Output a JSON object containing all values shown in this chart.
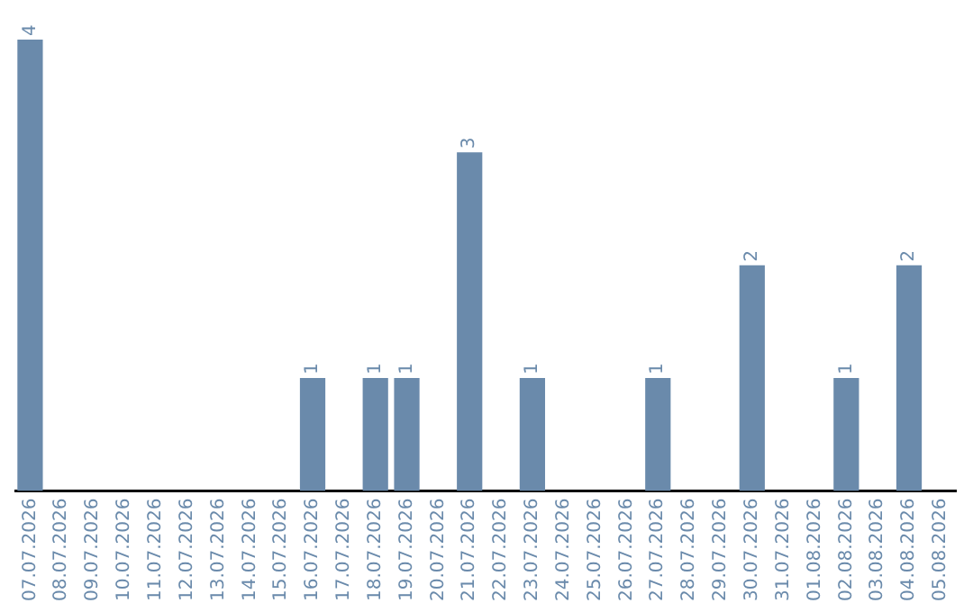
{
  "chart_data": {
    "type": "bar",
    "categories": [
      "07.07.2026",
      "08.07.2026",
      "09.07.2026",
      "10.07.2026",
      "11.07.2026",
      "12.07.2026",
      "13.07.2026",
      "14.07.2026",
      "15.07.2026",
      "16.07.2026",
      "17.07.2026",
      "18.07.2026",
      "19.07.2026",
      "20.07.2026",
      "21.07.2026",
      "22.07.2026",
      "23.07.2026",
      "24.07.2026",
      "25.07.2026",
      "26.07.2026",
      "27.07.2026",
      "28.07.2026",
      "29.07.2026",
      "30.07.2026",
      "31.07.2026",
      "01.08.2026",
      "02.08.2026",
      "03.08.2026",
      "04.08.2026",
      "05.08.2026"
    ],
    "values": [
      4,
      0,
      0,
      0,
      0,
      0,
      0,
      0,
      0,
      1,
      0,
      1,
      1,
      0,
      3,
      0,
      1,
      0,
      0,
      0,
      1,
      0,
      0,
      2,
      0,
      0,
      1,
      0,
      2,
      0
    ],
    "value_labels": [
      "4",
      null,
      null,
      null,
      null,
      null,
      null,
      null,
      null,
      "1",
      null,
      "1",
      "1",
      null,
      "3",
      null,
      "1",
      null,
      null,
      null,
      "1",
      null,
      null,
      "2",
      null,
      null,
      "1",
      null,
      "2",
      null
    ],
    "color": "#6a8aab",
    "grid": false,
    "legend": false
  }
}
